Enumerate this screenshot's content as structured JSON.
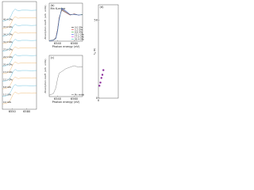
{
  "chart_data": [
    {
      "type": "line",
      "label_mode": "inline",
      "xlim": [
        6530,
        6600
      ],
      "xticks": [
        6550,
        6580
      ],
      "ylim": [
        -0.5,
        9.5
      ],
      "x": [
        6530,
        6538,
        6544,
        6548,
        6552,
        6556,
        6562,
        6570,
        6580,
        6590,
        6600
      ],
      "series": [
        {
          "name": "0.0 GPa",
          "color": "#e8a040",
          "values": [
            0,
            0.05,
            0.2,
            0.5,
            0.9,
            1.1,
            0.95,
            1,
            1,
            0.98,
            1
          ]
        },
        {
          "name": "5.2 GPa",
          "color": "#30a8d0",
          "values": [
            0.7,
            0.75,
            0.9,
            1.2,
            1.6,
            1.8,
            1.65,
            1.7,
            1.7,
            1.68,
            1.7
          ]
        },
        {
          "name": "8.8 GPa",
          "color": "#e8a040",
          "values": [
            1.4,
            1.45,
            1.6,
            1.9,
            2.3,
            2.5,
            2.35,
            2.4,
            2.4,
            2.38,
            2.4
          ]
        },
        {
          "name": "12.1 GPa",
          "color": "#30a8d0",
          "values": [
            2.1,
            2.15,
            2.3,
            2.6,
            3,
            3.2,
            3.05,
            3.1,
            3.1,
            3.08,
            3.1
          ]
        },
        {
          "name": "17.0 GPa",
          "color": "#e8a040",
          "values": [
            2.8,
            2.85,
            3,
            3.3,
            3.7,
            3.9,
            3.75,
            3.8,
            3.8,
            3.78,
            3.8
          ]
        },
        {
          "name": "20.4 GPa",
          "color": "#30a8d0",
          "values": [
            3.5,
            3.55,
            3.7,
            4,
            4.4,
            4.6,
            4.45,
            4.5,
            4.5,
            4.48,
            4.5
          ]
        },
        {
          "name": "24.5 GPa",
          "color": "#e8a040",
          "values": [
            4.2,
            4.25,
            4.4,
            4.7,
            5.1,
            5.3,
            5.15,
            5.2,
            5.2,
            5.18,
            5.2
          ]
        },
        {
          "name": "27.6 GPa",
          "color": "#30a8d0",
          "values": [
            4.9,
            4.95,
            5.1,
            5.4,
            5.8,
            6,
            5.85,
            5.9,
            5.9,
            5.88,
            5.9
          ]
        },
        {
          "name": "31.0 GPa",
          "color": "#e8a040",
          "values": [
            5.6,
            5.65,
            5.8,
            6.1,
            6.5,
            6.7,
            6.55,
            6.6,
            6.6,
            6.58,
            6.6
          ]
        },
        {
          "name": "34.2 GPa",
          "color": "#30a8d0",
          "values": [
            6.3,
            6.35,
            6.5,
            6.8,
            7.2,
            7.4,
            7.25,
            7.3,
            7.3,
            7.28,
            7.3
          ]
        },
        {
          "name": "37.6 GPa",
          "color": "#e8a040",
          "values": [
            7,
            7.05,
            7.2,
            7.5,
            7.9,
            8.1,
            7.95,
            8,
            8,
            7.98,
            8
          ]
        },
        {
          "name": "40.4 GPa",
          "color": "#30a8d0",
          "values": [
            7.7,
            7.75,
            7.9,
            8.2,
            8.6,
            8.8,
            8.65,
            8.7,
            8.7,
            8.68,
            8.7
          ]
        }
      ]
    },
    {
      "type": "line",
      "title": "(b)",
      "annotation": "Mn K-edge",
      "xlabel": "Photon energy (eV)",
      "ylabel": "Absorption coeff. (arb. units)",
      "legend": "lower right",
      "xlim": [
        6530,
        6570
      ],
      "xticks": [
        6540,
        6560
      ],
      "ylim": [
        0,
        1.6
      ],
      "x": [
        6530,
        6535,
        6538,
        6540,
        6542,
        6545,
        6550,
        6555,
        6560,
        6565,
        6570
      ],
      "series": [
        {
          "name": "0.0 GPa",
          "color": "#000000",
          "values": [
            0.02,
            0.05,
            0.15,
            0.5,
            1,
            1.3,
            1.2,
            1.1,
            1.15,
            1.1,
            1.12
          ]
        },
        {
          "name": "5.2 GPa",
          "color": "#e02020",
          "values": [
            0.02,
            0.05,
            0.14,
            0.48,
            0.98,
            1.32,
            1.22,
            1.1,
            1.14,
            1.1,
            1.12
          ]
        },
        {
          "name": "8.8 GPa",
          "color": "#20a020",
          "values": [
            0.02,
            0.05,
            0.13,
            0.46,
            0.96,
            1.34,
            1.24,
            1.11,
            1.13,
            1.1,
            1.12
          ]
        },
        {
          "name": "12.1 GPa",
          "color": "#2040e0",
          "values": [
            0.02,
            0.04,
            0.12,
            0.44,
            0.94,
            1.36,
            1.25,
            1.12,
            1.13,
            1.1,
            1.11
          ]
        },
        {
          "name": "17.0 GPa",
          "color": "#d020d0",
          "values": [
            0.02,
            0.04,
            0.11,
            0.42,
            0.92,
            1.38,
            1.27,
            1.12,
            1.12,
            1.1,
            1.11
          ]
        },
        {
          "name": "20.4 GPa",
          "color": "#20b0b0",
          "values": [
            0.02,
            0.04,
            0.1,
            0.4,
            0.9,
            1.4,
            1.28,
            1.13,
            1.12,
            1.1,
            1.11
          ]
        }
      ]
    },
    {
      "type": "line",
      "title": "(c)",
      "xlabel": "Photon energy (eV)",
      "ylabel": "Absorption coeff. (arb. units)",
      "legend": "lower right",
      "xlim": [
        6530,
        6570
      ],
      "xticks": [
        6540,
        6560
      ],
      "ylim": [
        0,
        1.4
      ],
      "x": [
        6530,
        6535,
        6538,
        6540,
        6542,
        6545,
        6550,
        6555,
        6560,
        6565,
        6570
      ],
      "series": [
        {
          "name": "Mn metal",
          "color": "#555555",
          "values": [
            0.05,
            0.1,
            0.3,
            0.6,
            0.8,
            0.85,
            0.95,
            1,
            1.05,
            1,
            1.02
          ]
        }
      ]
    },
    {
      "type": "scatter",
      "title": "(d)",
      "ylabel": "T",
      "ylabel_subscript": "N",
      "ylabel_unit": "(K)",
      "xlim": [
        0,
        20
      ],
      "xticks": [
        0
      ],
      "ylim": [
        0,
        60
      ],
      "yticks": [
        0,
        50
      ],
      "x": [
        1,
        2,
        3,
        4,
        5
      ],
      "series": [
        {
          "name": null,
          "color": "#8a2a9a",
          "values": [
            8,
            10,
            13,
            15,
            18
          ]
        }
      ]
    }
  ]
}
